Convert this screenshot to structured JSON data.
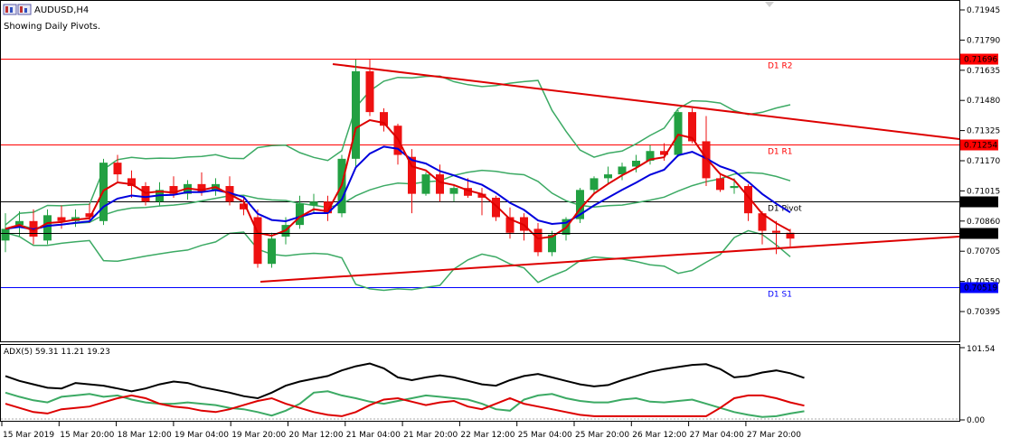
{
  "header": {
    "symbol_tf": "AUDUSD,H4",
    "subtitle": "Showing Daily Pivots."
  },
  "price_axis": {
    "ticks": [
      "0.71945",
      "0.71790",
      "0.71635",
      "0.71480",
      "0.71325",
      "0.71170",
      "0.71015",
      "0.70860",
      "0.70705",
      "0.70550",
      "0.70395"
    ]
  },
  "pivots": [
    {
      "name": "D1 R2",
      "value": "0.71696",
      "color": "#ff0000"
    },
    {
      "name": "D1 R1",
      "value": "0.71254",
      "color": "#ff0000"
    },
    {
      "name": "D1 Pivot",
      "value": "0.70961",
      "color": "#000000"
    },
    {
      "name": "D1 S1",
      "value": "0.70519",
      "color": "#0000ff"
    }
  ],
  "current_price": {
    "value": "0.70798"
  },
  "indicator": {
    "label": "ADX(5) 59.31 11.21 19.23",
    "axis_top": "101.54",
    "axis_bottom": "0.00"
  },
  "time_axis": {
    "labels": [
      "15 Mar 2019",
      "15 Mar 20:00",
      "18 Mar 12:00",
      "19 Mar 04:00",
      "19 Mar 20:00",
      "20 Mar 12:00",
      "21 Mar 04:00",
      "21 Mar 20:00",
      "22 Mar 12:00",
      "25 Mar 04:00",
      "25 Mar 20:00",
      "26 Mar 12:00",
      "27 Mar 04:00",
      "27 Mar 20:00"
    ]
  },
  "colors": {
    "bull": "#22a042",
    "bear": "#ee1111",
    "ma_fast": "#dd0000",
    "ma_slow": "#0000dd",
    "bands": "#3caa64",
    "trendline": "#dd0000",
    "adx_main": "#000000",
    "adx_plus": "#3caa64",
    "adx_minus": "#dd0000"
  },
  "chart_data": {
    "type": "candlestick",
    "symbol": "AUDUSD",
    "timeframe": "H4",
    "y_range": [
      0.7032,
      0.7199
    ],
    "candles": [
      {
        "o": 0.7076,
        "h": 0.709,
        "l": 0.707,
        "c": 0.7082
      },
      {
        "o": 0.7084,
        "h": 0.7091,
        "l": 0.7078,
        "c": 0.7086
      },
      {
        "o": 0.7086,
        "h": 0.7092,
        "l": 0.7074,
        "c": 0.7078
      },
      {
        "o": 0.7076,
        "h": 0.7092,
        "l": 0.7074,
        "c": 0.7089
      },
      {
        "o": 0.7088,
        "h": 0.7094,
        "l": 0.7082,
        "c": 0.7086
      },
      {
        "o": 0.7086,
        "h": 0.7092,
        "l": 0.7083,
        "c": 0.7088
      },
      {
        "o": 0.709,
        "h": 0.7095,
        "l": 0.7085,
        "c": 0.7088
      },
      {
        "o": 0.7086,
        "h": 0.7118,
        "l": 0.7084,
        "c": 0.7116
      },
      {
        "o": 0.7116,
        "h": 0.712,
        "l": 0.7106,
        "c": 0.711
      },
      {
        "o": 0.7108,
        "h": 0.7112,
        "l": 0.7098,
        "c": 0.7104
      },
      {
        "o": 0.7104,
        "h": 0.7106,
        "l": 0.7094,
        "c": 0.7096
      },
      {
        "o": 0.7096,
        "h": 0.7106,
        "l": 0.7094,
        "c": 0.7102
      },
      {
        "o": 0.7104,
        "h": 0.7109,
        "l": 0.7098,
        "c": 0.71
      },
      {
        "o": 0.71,
        "h": 0.7107,
        "l": 0.7097,
        "c": 0.7105
      },
      {
        "o": 0.7105,
        "h": 0.7111,
        "l": 0.7099,
        "c": 0.7101
      },
      {
        "o": 0.7102,
        "h": 0.7108,
        "l": 0.7099,
        "c": 0.7105
      },
      {
        "o": 0.7104,
        "h": 0.7109,
        "l": 0.7094,
        "c": 0.7096
      },
      {
        "o": 0.7095,
        "h": 0.7098,
        "l": 0.7089,
        "c": 0.7092
      },
      {
        "o": 0.7088,
        "h": 0.7092,
        "l": 0.7062,
        "c": 0.7064
      },
      {
        "o": 0.7064,
        "h": 0.708,
        "l": 0.7062,
        "c": 0.7077
      },
      {
        "o": 0.7078,
        "h": 0.7088,
        "l": 0.7074,
        "c": 0.7084
      },
      {
        "o": 0.7084,
        "h": 0.7099,
        "l": 0.7082,
        "c": 0.7095
      },
      {
        "o": 0.7094,
        "h": 0.71,
        "l": 0.709,
        "c": 0.7096
      },
      {
        "o": 0.7096,
        "h": 0.7099,
        "l": 0.7086,
        "c": 0.709
      },
      {
        "o": 0.709,
        "h": 0.712,
        "l": 0.7088,
        "c": 0.7118
      },
      {
        "o": 0.7118,
        "h": 0.7169,
        "l": 0.7114,
        "c": 0.7163
      },
      {
        "o": 0.7163,
        "h": 0.7169,
        "l": 0.714,
        "c": 0.7142
      },
      {
        "o": 0.7142,
        "h": 0.7144,
        "l": 0.7132,
        "c": 0.7135
      },
      {
        "o": 0.7135,
        "h": 0.7136,
        "l": 0.7115,
        "c": 0.712
      },
      {
        "o": 0.7119,
        "h": 0.7123,
        "l": 0.709,
        "c": 0.71
      },
      {
        "o": 0.71,
        "h": 0.7111,
        "l": 0.7099,
        "c": 0.711
      },
      {
        "o": 0.711,
        "h": 0.7115,
        "l": 0.7096,
        "c": 0.71
      },
      {
        "o": 0.71,
        "h": 0.7105,
        "l": 0.7096,
        "c": 0.7103
      },
      {
        "o": 0.7103,
        "h": 0.7108,
        "l": 0.7098,
        "c": 0.7099
      },
      {
        "o": 0.71,
        "h": 0.7103,
        "l": 0.7089,
        "c": 0.7098
      },
      {
        "o": 0.7098,
        "h": 0.7099,
        "l": 0.7086,
        "c": 0.7088
      },
      {
        "o": 0.7088,
        "h": 0.7093,
        "l": 0.7077,
        "c": 0.708
      },
      {
        "o": 0.7088,
        "h": 0.709,
        "l": 0.7076,
        "c": 0.7081
      },
      {
        "o": 0.7082,
        "h": 0.7085,
        "l": 0.7068,
        "c": 0.707
      },
      {
        "o": 0.707,
        "h": 0.7081,
        "l": 0.7068,
        "c": 0.7079
      },
      {
        "o": 0.7079,
        "h": 0.7088,
        "l": 0.7076,
        "c": 0.7087
      },
      {
        "o": 0.7087,
        "h": 0.7103,
        "l": 0.7085,
        "c": 0.7102
      },
      {
        "o": 0.7102,
        "h": 0.7109,
        "l": 0.71,
        "c": 0.7108
      },
      {
        "o": 0.7108,
        "h": 0.7114,
        "l": 0.7105,
        "c": 0.711
      },
      {
        "o": 0.711,
        "h": 0.7116,
        "l": 0.7107,
        "c": 0.7114
      },
      {
        "o": 0.7114,
        "h": 0.712,
        "l": 0.7111,
        "c": 0.7117
      },
      {
        "o": 0.7117,
        "h": 0.7125,
        "l": 0.7115,
        "c": 0.7122
      },
      {
        "o": 0.7122,
        "h": 0.7126,
        "l": 0.7117,
        "c": 0.712
      },
      {
        "o": 0.712,
        "h": 0.7143,
        "l": 0.7119,
        "c": 0.7142
      },
      {
        "o": 0.7142,
        "h": 0.7144,
        "l": 0.7126,
        "c": 0.7127
      },
      {
        "o": 0.7127,
        "h": 0.714,
        "l": 0.7104,
        "c": 0.7108
      },
      {
        "o": 0.7108,
        "h": 0.711,
        "l": 0.7101,
        "c": 0.7102
      },
      {
        "o": 0.7103,
        "h": 0.7108,
        "l": 0.71,
        "c": 0.7104
      },
      {
        "o": 0.7104,
        "h": 0.7105,
        "l": 0.7086,
        "c": 0.709
      },
      {
        "o": 0.709,
        "h": 0.7091,
        "l": 0.7074,
        "c": 0.7081
      },
      {
        "o": 0.7081,
        "h": 0.7086,
        "l": 0.7069,
        "c": 0.708
      },
      {
        "o": 0.708,
        "h": 0.7082,
        "l": 0.7072,
        "c": 0.7077
      }
    ],
    "pivot_levels": {
      "R2": 0.71696,
      "R1": 0.71254,
      "Pivot": 0.70961,
      "S1": 0.70519
    },
    "current_price": 0.70798,
    "adx": {
      "adx": 59.31,
      "plus_di": 11.21,
      "minus_di": 19.23,
      "range": [
        0,
        101.54
      ]
    }
  }
}
